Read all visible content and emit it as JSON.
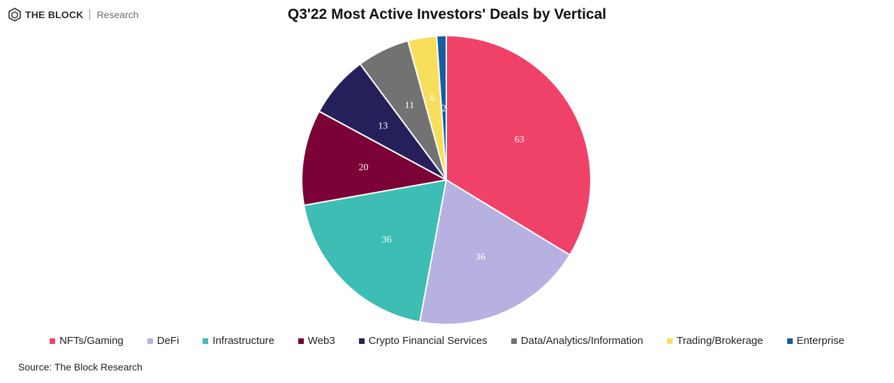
{
  "brand": {
    "name": "THE BLOCK",
    "sub": "Research"
  },
  "colors": {
    "NFTs/Gaming": "#f04268",
    "DeFi": "#b6b1e0",
    "Infrastructure": "#3dbdb3",
    "Web3": "#7a0236",
    "Crypto Financial Services": "#26205a",
    "Data/Analytics/Information": "#727272",
    "Trading/Brokerage": "#f7df5b",
    "Enterprise": "#135fa0"
  },
  "chart_data": {
    "type": "pie",
    "title": "Q3'22 Most Active Investors' Deals by Vertical",
    "categories": [
      "NFTs/Gaming",
      "DeFi",
      "Infrastructure",
      "Web3",
      "Crypto Financial Services",
      "Data/Analytics/Information",
      "Trading/Brokerage",
      "Enterprise"
    ],
    "values": [
      63,
      36,
      36,
      20,
      13,
      11,
      6,
      2
    ],
    "start_angle": "12 o'clock",
    "direction": "clockwise",
    "legend_position": "bottom",
    "data_labels": true
  },
  "source": "Source: The Block Research"
}
